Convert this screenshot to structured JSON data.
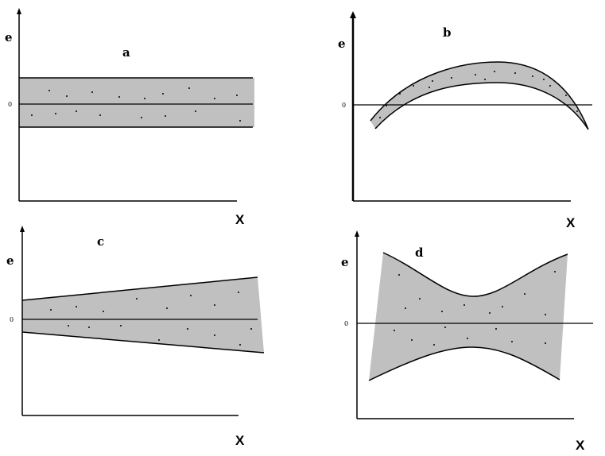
{
  "panels": [
    {
      "id": "a",
      "letter": "a",
      "y_label": "e",
      "x_label": "X",
      "zero_label": "0",
      "pattern": "constant band"
    },
    {
      "id": "b",
      "letter": "b",
      "y_label": "e",
      "x_label": "X",
      "zero_label": "0",
      "pattern": "curved band"
    },
    {
      "id": "c",
      "letter": "c",
      "y_label": "e",
      "x_label": "X",
      "zero_label": "0",
      "pattern": "widening band"
    },
    {
      "id": "d",
      "letter": "d",
      "y_label": "e",
      "x_label": "X",
      "zero_label": "0",
      "pattern": "bow-tie band"
    }
  ],
  "colors": {
    "band": "#c0c0c0",
    "ink": "#000000"
  }
}
